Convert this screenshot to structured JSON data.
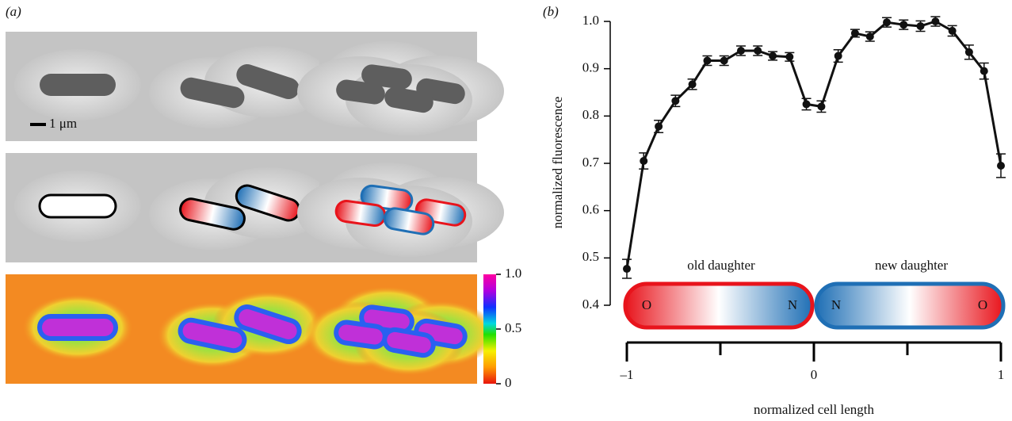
{
  "panel_a": {
    "label": "(a)",
    "scale_bar": "1 μm",
    "colorbar": {
      "lim": [
        0,
        1
      ],
      "ticks": [
        0,
        0.5,
        {
          "value": 1,
          "label": "1.0"
        }
      ]
    }
  },
  "chart_data": {
    "type": "line",
    "panel_label": "(b)",
    "x_label": "normalized cell length",
    "y_label": "normalized fluorescence",
    "x": [
      -1,
      -0.91,
      -0.83,
      -0.74,
      -0.65,
      -0.57,
      -0.48,
      -0.39,
      -0.3,
      -0.22,
      -0.13,
      -0.04,
      0.04,
      0.13,
      0.22,
      0.3,
      0.39,
      0.48,
      0.57,
      0.65,
      0.74,
      0.83,
      0.91,
      1
    ],
    "values": [
      0.477,
      0.705,
      0.778,
      0.832,
      0.867,
      0.917,
      0.917,
      0.938,
      0.938,
      0.927,
      0.925,
      0.825,
      0.82,
      0.927,
      0.975,
      0.968,
      0.998,
      0.993,
      0.99,
      1.0,
      0.98,
      0.935,
      0.895,
      0.695
    ],
    "errors": [
      0.02,
      0.017,
      0.013,
      0.012,
      0.011,
      0.01,
      0.01,
      0.01,
      0.01,
      0.009,
      0.009,
      0.012,
      0.012,
      0.013,
      0.008,
      0.01,
      0.01,
      0.01,
      0.011,
      0.01,
      0.011,
      0.015,
      0.017,
      0.025
    ],
    "color": "#111111",
    "xlim": [
      -1,
      1
    ],
    "ylim": [
      0.4,
      1.0
    ],
    "xticks": [
      {
        "value": -1,
        "label": "–1"
      },
      0,
      1
    ],
    "x_minor_ticks": [
      -0.5,
      0.5
    ],
    "yticks": [
      0.4,
      0.5,
      0.6,
      0.7,
      0.8,
      0.9,
      {
        "value": 1,
        "label": "1.0"
      }
    ],
    "annotations": {
      "old": "old daughter",
      "new": "new daughter",
      "old_pole_left": "O",
      "new_pole_left": "N",
      "new_pole_right": "N",
      "old_pole_right": "O"
    }
  }
}
